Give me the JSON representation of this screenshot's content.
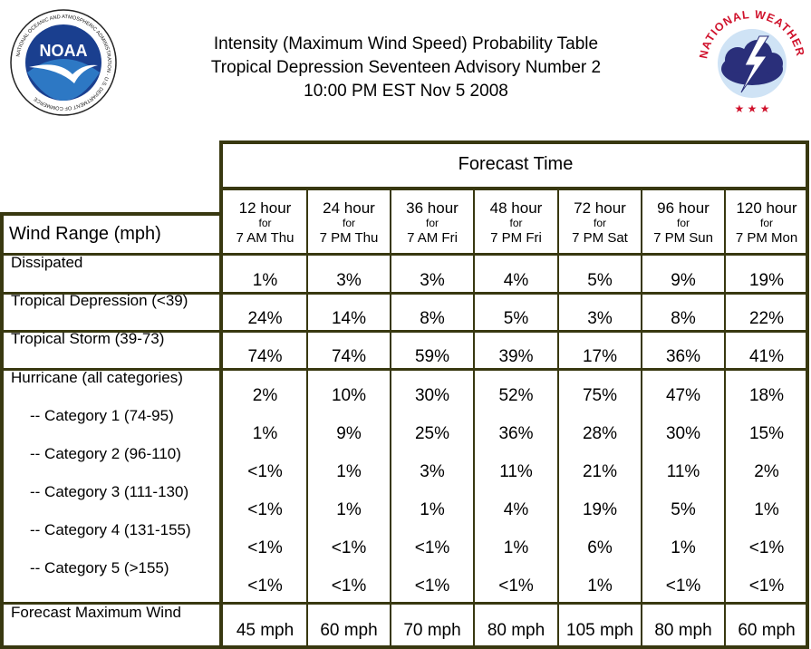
{
  "title": {
    "line1": "Intensity (Maximum Wind Speed) Probability Table",
    "line2": "Tropical Depression Seventeen Advisory Number 2",
    "line3": "10:00 PM EST Nov 5 2008"
  },
  "logos": {
    "noaa_text": "NOAA",
    "noaa_ring": "NATIONAL OCEANIC AND ATMOSPHERIC ADMINISTRATION · U.S. DEPARTMENT OF COMMERCE",
    "nws_ring": "NATIONAL WEATHER SERVICE"
  },
  "colors": {
    "grid": "#383810",
    "noaa_blue": "#1a3f8f",
    "nws_red": "#d0122c",
    "nws_cloud": "#2a2f7a"
  },
  "chart_data": {
    "type": "table",
    "forecast_time_label": "Forecast Time",
    "wind_range_label": "Wind Range (mph)",
    "columns": [
      {
        "hour": "12 hour",
        "for": "for",
        "valid": "7 AM Thu"
      },
      {
        "hour": "24 hour",
        "for": "for",
        "valid": "7 PM Thu"
      },
      {
        "hour": "36 hour",
        "for": "for",
        "valid": "7 AM Fri"
      },
      {
        "hour": "48 hour",
        "for": "for",
        "valid": "7 PM Fri"
      },
      {
        "hour": "72 hour",
        "for": "for",
        "valid": "7 PM Sat"
      },
      {
        "hour": "96 hour",
        "for": "for",
        "valid": "7 PM Sun"
      },
      {
        "hour": "120 hour",
        "for": "for",
        "valid": "7 PM Mon"
      }
    ],
    "rows": [
      {
        "label": "Dissipated",
        "values": [
          "1%",
          "3%",
          "3%",
          "4%",
          "5%",
          "9%",
          "19%"
        ]
      },
      {
        "label": "Tropical Depression (<39)",
        "values": [
          "24%",
          "14%",
          "8%",
          "5%",
          "3%",
          "8%",
          "22%"
        ]
      },
      {
        "label": "Tropical Storm (39-73)",
        "values": [
          "74%",
          "74%",
          "59%",
          "39%",
          "17%",
          "36%",
          "41%"
        ]
      },
      {
        "label": "Hurricane (all categories)",
        "values": [
          "2%",
          "10%",
          "30%",
          "52%",
          "75%",
          "47%",
          "18%"
        ]
      },
      {
        "label": "-- Category 1 (74-95)",
        "values": [
          "1%",
          "9%",
          "25%",
          "36%",
          "28%",
          "30%",
          "15%"
        ]
      },
      {
        "label": "-- Category 2 (96-110)",
        "values": [
          "<1%",
          "1%",
          "3%",
          "11%",
          "21%",
          "11%",
          "2%"
        ]
      },
      {
        "label": "-- Category 3 (111-130)",
        "values": [
          "<1%",
          "1%",
          "1%",
          "4%",
          "19%",
          "5%",
          "1%"
        ]
      },
      {
        "label": "-- Category 4 (131-155)",
        "values": [
          "<1%",
          "<1%",
          "<1%",
          "1%",
          "6%",
          "1%",
          "<1%"
        ]
      },
      {
        "label": "-- Category 5 (>155)",
        "values": [
          "<1%",
          "<1%",
          "<1%",
          "<1%",
          "1%",
          "<1%",
          "<1%"
        ]
      },
      {
        "label": "Forecast Maximum Wind",
        "values": [
          "45 mph",
          "60 mph",
          "70 mph",
          "80 mph",
          "105 mph",
          "80 mph",
          "60 mph"
        ]
      }
    ]
  }
}
